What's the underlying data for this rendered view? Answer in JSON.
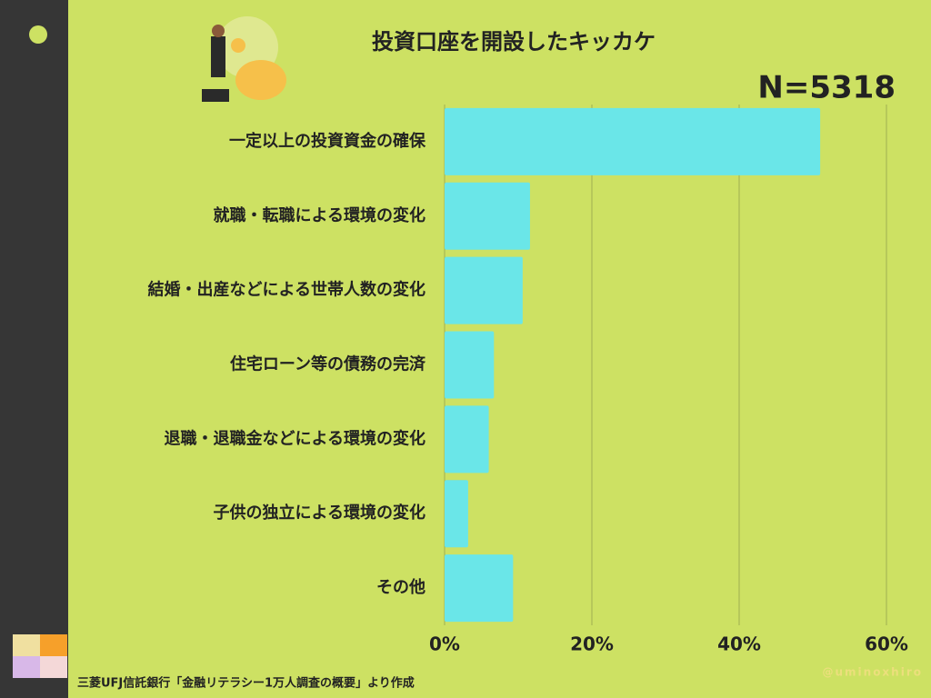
{
  "chart_data": {
    "type": "bar",
    "orientation": "horizontal",
    "title": "投資口座を開設したキッカケ",
    "annotation": "N=5318",
    "source": "三菱UFJ信託銀行「金融リテラシー1万人調査の概要」より作成",
    "watermark": "@uminoxhiro",
    "categories": [
      "一定以上の投資資金の確保",
      "就職・転職による環境の変化",
      "結婚・出産などによる世帯人数の変化",
      "住宅ローン等の債務の完済",
      "退職・退職金などによる環境の変化",
      "子供の独立による環境の変化",
      "その他"
    ],
    "values": [
      51,
      11.6,
      10.6,
      6.7,
      6.0,
      3.2,
      9.3
    ],
    "color": "#6ae6e8",
    "xlim": [
      0,
      60
    ],
    "xticks": [
      {
        "value": 0,
        "label": "0%"
      },
      {
        "value": 20,
        "label": "20%"
      },
      {
        "value": 40,
        "label": "40%"
      },
      {
        "value": 60,
        "label": "60%"
      }
    ],
    "grid": true
  }
}
